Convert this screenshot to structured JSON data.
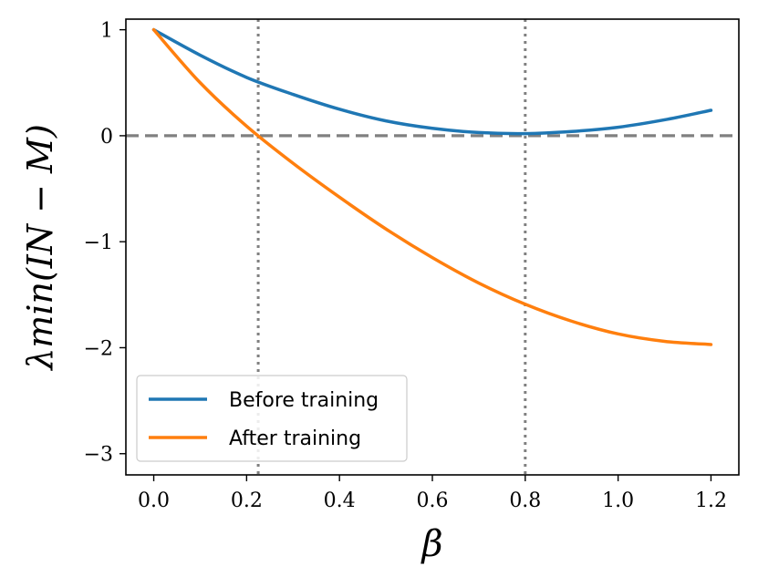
{
  "chart_data": {
    "type": "line",
    "xlabel": "β",
    "ylabel": "λmin(IN − M)",
    "xlim": [
      -0.06,
      1.26
    ],
    "ylim": [
      -3.2,
      1.1
    ],
    "xticks": [
      0.0,
      0.2,
      0.4,
      0.6,
      0.8,
      1.0,
      1.2
    ],
    "xtick_labels": [
      "0.0",
      "0.2",
      "0.4",
      "0.6",
      "0.8",
      "1.0",
      "1.2"
    ],
    "yticks": [
      1,
      0,
      -1,
      -2,
      -3
    ],
    "ytick_labels": [
      "1",
      "0",
      "−1",
      "−2",
      "−3"
    ],
    "hline": {
      "y": 0,
      "style": "dashed",
      "color": "#808080"
    },
    "vlines": [
      {
        "x": 0.225,
        "style": "dotted",
        "color": "#808080"
      },
      {
        "x": 0.8,
        "style": "dotted",
        "color": "#808080"
      }
    ],
    "legend_position": "bottom-left",
    "series": [
      {
        "name": "Before training",
        "color": "#1f77b4",
        "x": [
          0.0,
          0.1,
          0.2,
          0.3,
          0.4,
          0.5,
          0.6,
          0.7,
          0.8,
          0.9,
          1.0,
          1.1,
          1.2
        ],
        "values": [
          1.0,
          0.76,
          0.55,
          0.39,
          0.25,
          0.14,
          0.07,
          0.03,
          0.02,
          0.04,
          0.08,
          0.15,
          0.24
        ]
      },
      {
        "name": "After training",
        "color": "#ff7f0e",
        "x": [
          0.0,
          0.1,
          0.2,
          0.3,
          0.4,
          0.5,
          0.6,
          0.7,
          0.8,
          0.9,
          1.0,
          1.1,
          1.2
        ],
        "values": [
          1.0,
          0.5,
          0.09,
          -0.26,
          -0.58,
          -0.88,
          -1.15,
          -1.39,
          -1.59,
          -1.75,
          -1.87,
          -1.94,
          -1.97
        ]
      }
    ]
  }
}
